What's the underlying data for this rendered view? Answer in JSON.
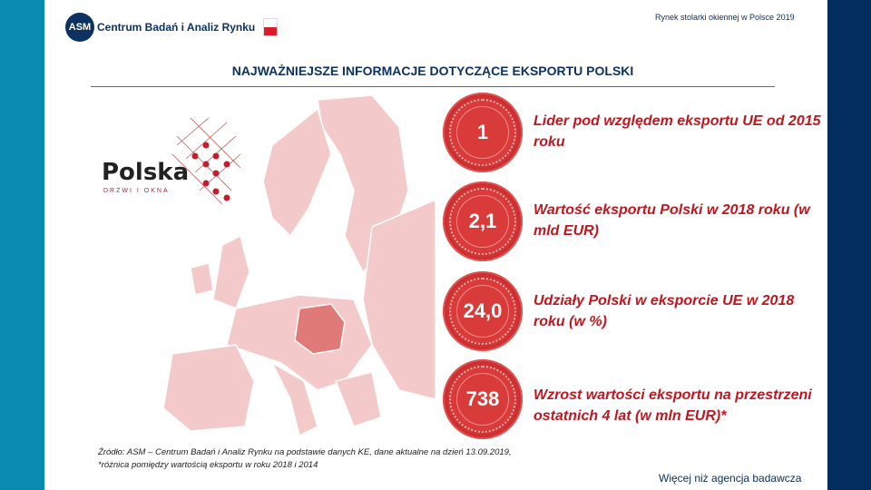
{
  "header": {
    "org": "Centrum Badań i Analiz Rynku",
    "org_short": "ASM",
    "report_title": "Rynek stolarki okiennej w Polsce 2019"
  },
  "title": "NAJWAŻNIEJSZE INFORMACJE DOTYCZĄCE EKSPORTU POLSKI",
  "brand": {
    "name": "Polska",
    "subtitle": "DRZWI I OKNA"
  },
  "facts": [
    {
      "value": "1",
      "text": "Lider pod względem eksportu UE od 2015 roku"
    },
    {
      "value": "2,1",
      "text": "Wartość eksportu Polski w 2018 roku (w mld EUR)"
    },
    {
      "value": "24,0",
      "text": "Udziały Polski  w eksporcie UE w 2018 roku (w %)"
    },
    {
      "value": "738",
      "text": "Wzrost wartości eksportu na przestrzeni ostatnich 4 lat  (w mln EUR)*"
    }
  ],
  "source": {
    "line1": "Źródło: ASM – Centrum Badań i Analiz Rynku na podstawie danych KE, dane aktualne na dzień 13.09.2019,",
    "line2": "*różnica pomiędzy wartością eksportu w roku 2018 i 2014"
  },
  "tagline": "Więcej niż agencja badawcza",
  "colors": {
    "accent": "#c0161f",
    "navy": "#032d5e",
    "teal": "#0a8ab0"
  }
}
